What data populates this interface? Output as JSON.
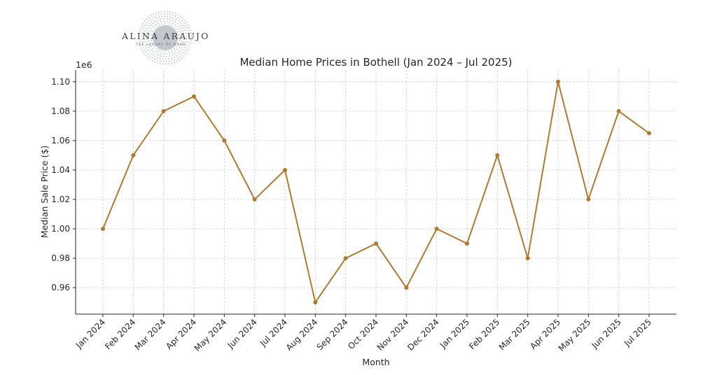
{
  "logo": {
    "name": "ALINA ARAUJO",
    "tagline": "THE LUXURY OF HOME"
  },
  "chart_data": {
    "type": "line",
    "title": "Median Home Prices in Bothell (Jan 2024 – Jul 2025)",
    "xlabel": "Month",
    "ylabel": "Median Sale Price ($)",
    "y_offset_label": "1e6",
    "categories": [
      "Jan 2024",
      "Feb 2024",
      "Mar 2024",
      "Apr 2024",
      "May 2024",
      "Jun 2024",
      "Jul 2024",
      "Aug 2024",
      "Sep 2024",
      "Oct 2024",
      "Nov 2024",
      "Dec 2024",
      "Jan 2025",
      "Feb 2025",
      "Mar 2025",
      "Apr 2025",
      "May 2025",
      "Jun 2025",
      "Jul 2025"
    ],
    "series": [
      {
        "name": "Median Sale Price",
        "color": "#b07a2f",
        "values": [
          1000000,
          1050000,
          1080000,
          1090000,
          1060000,
          1020000,
          1040000,
          950000,
          980000,
          990000,
          960000,
          1000000,
          990000,
          1050000,
          980000,
          1100000,
          1020000,
          1080000,
          1065000
        ]
      }
    ],
    "ylim": [
      942000,
      1108000
    ],
    "yticks": [
      0.96,
      0.98,
      1.0,
      1.02,
      1.04,
      1.06,
      1.08,
      1.1
    ],
    "ytick_labels": [
      "0.96",
      "0.98",
      "1.00",
      "1.02",
      "1.04",
      "1.06",
      "1.08",
      "1.10"
    ],
    "grid": true
  }
}
